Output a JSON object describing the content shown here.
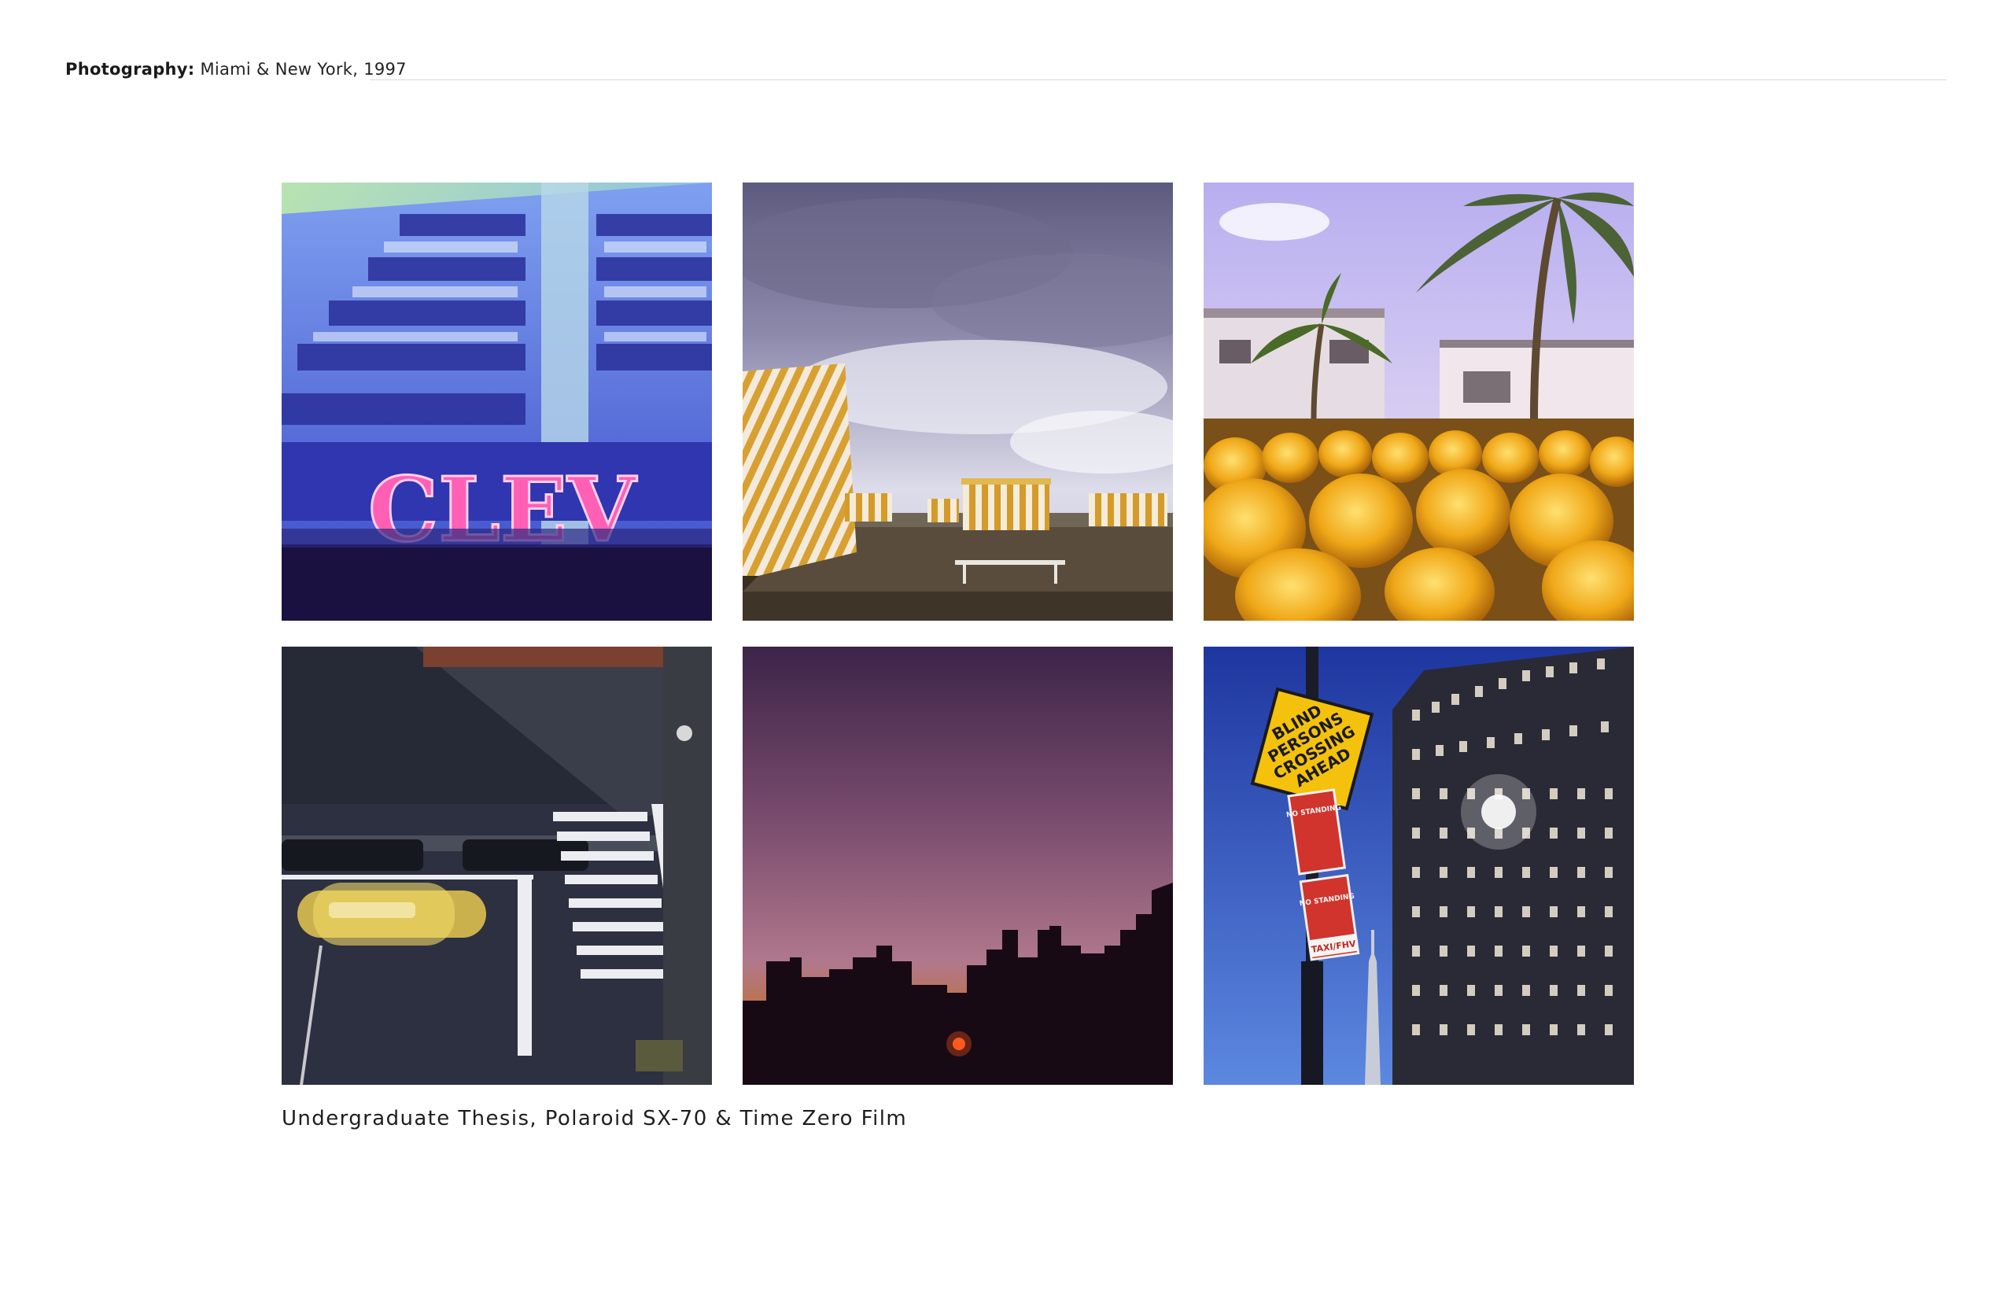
{
  "header": {
    "label": "Photography:",
    "subtitle": "Miami & New York, 1997"
  },
  "photos": [
    {
      "subject": "art-deco-hotel-neon-sign",
      "sign_text": "CLEV"
    },
    {
      "subject": "striped-beach-cabanas-cloudy-sky"
    },
    {
      "subject": "yellow-barricade-lights-palm-trees"
    },
    {
      "subject": "taxi-crosswalk-overhead"
    },
    {
      "subject": "skyline-silhouette-sunset"
    },
    {
      "subject": "blind-persons-sign-empire-state",
      "sign_text": [
        "BLIND",
        "PERSONS",
        "CROSSING",
        "AHEAD"
      ],
      "parking_sign_1": "NO STANDING",
      "parking_sign_2": "NO STANDING",
      "parking_sign_3": "TAXI/FHV"
    }
  ],
  "caption": "Undergraduate Thesis, Polaroid SX-70 & Time Zero Film"
}
